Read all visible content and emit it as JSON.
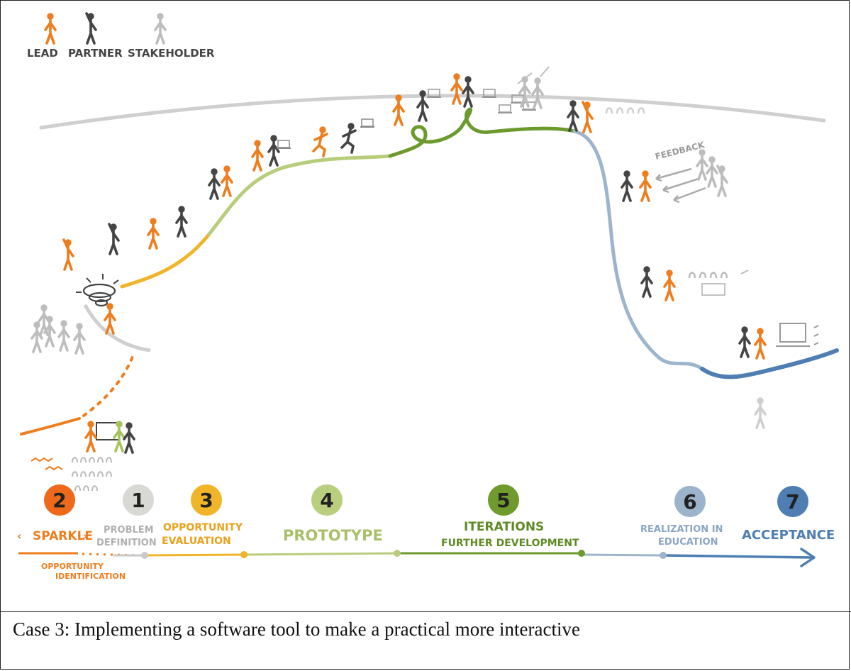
{
  "legend": [
    {
      "label": "LEAD",
      "color": "#ee7d1e"
    },
    {
      "label": "PARTNER",
      "color": "#444444"
    },
    {
      "label": "STAKEHOLDER",
      "color": "#b9b9b9"
    }
  ],
  "stages": [
    {
      "number": "2",
      "color": "#ee6a1a",
      "num_color": "#222222",
      "label_lines": [
        "SPARKLE"
      ],
      "label_color": "#ee7d1e"
    },
    {
      "number": "1",
      "color": "#d8d8d4",
      "num_color": "#222222",
      "label_lines": [
        "PROBLEM",
        "DEFINITION"
      ],
      "label_color": "#b0b0b0"
    },
    {
      "number": "3",
      "color": "#f1b52a",
      "num_color": "#222222",
      "label_lines": [
        "OPPORTUNITY",
        "EVALUATION"
      ],
      "label_color": "#e8a21e"
    },
    {
      "number": "4",
      "color": "#b9cf7e",
      "num_color": "#222222",
      "label_lines": [
        "PROTOTYPE"
      ],
      "label_color": "#a9c06a"
    },
    {
      "number": "5",
      "color": "#6f9a2c",
      "num_color": "#222222",
      "label_lines": [
        "ITERATIONS",
        "FURTHER DEVELOPMENT"
      ],
      "label_color": "#5f8a25"
    },
    {
      "number": "6",
      "color": "#9cb3cc",
      "num_color": "#222222",
      "label_lines": [
        "REALIZATION IN",
        "EDUCATION"
      ],
      "label_color": "#8aa6c4"
    },
    {
      "number": "7",
      "color": "#4f7eb3",
      "num_color": "#222222",
      "label_lines": [
        "ACCEPTANCE"
      ],
      "label_color": "#4f7eb3"
    }
  ],
  "sub_label": [
    "OPPORTUNITY",
    "IDENTIFICATION"
  ],
  "feedback_label": "FEEDBACK",
  "caption": "Case 3: Implementing a software tool to make a practical more interactive",
  "colors": {
    "orange": "#ee7d1e",
    "grey": "#bdbdbd",
    "yellow": "#f0b42a",
    "light_green": "#b8cd7c",
    "green": "#6c9a2c",
    "light_blue": "#9db4cd",
    "blue": "#4f7eb3",
    "dark": "#444444",
    "horizon": "#cfcfcf"
  }
}
